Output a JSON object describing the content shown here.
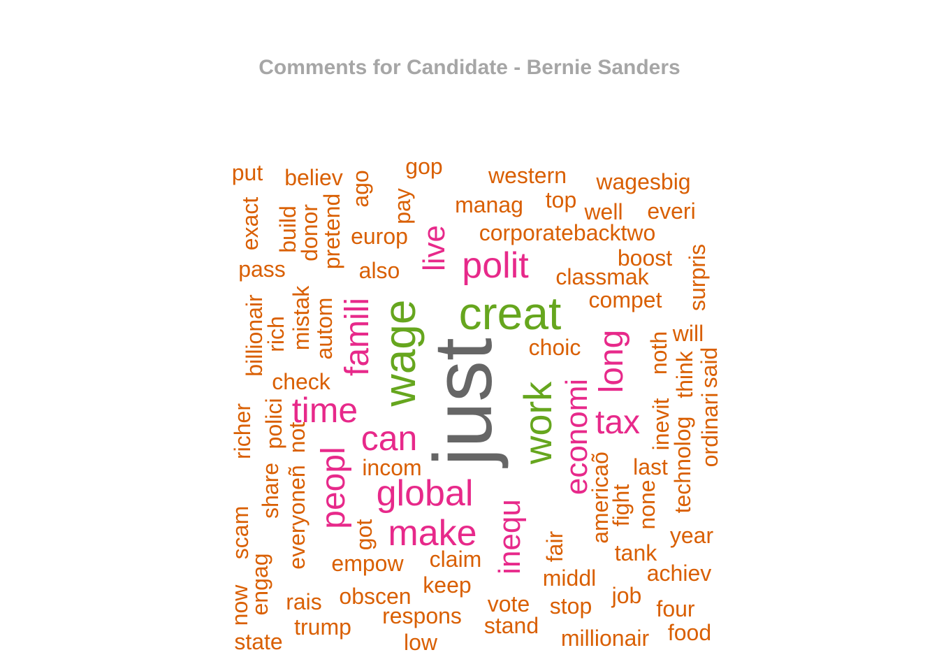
{
  "title": "Comments for Candidate - Bernie Sanders",
  "colors": {
    "orange": "#d95f02",
    "pink": "#e7298a",
    "green": "#66a61e",
    "gray": "#666666"
  },
  "words": [
    {
      "text": "just",
      "color": "gray"
    },
    {
      "text": "creat",
      "color": "green"
    },
    {
      "text": "wage",
      "color": "green"
    },
    {
      "text": "work",
      "color": "green"
    },
    {
      "text": "polit",
      "color": "pink"
    },
    {
      "text": "live",
      "color": "pink"
    },
    {
      "text": "famili",
      "color": "pink"
    },
    {
      "text": "time",
      "color": "pink"
    },
    {
      "text": "can",
      "color": "pink"
    },
    {
      "text": "peopl",
      "color": "pink"
    },
    {
      "text": "global",
      "color": "pink"
    },
    {
      "text": "make",
      "color": "pink"
    },
    {
      "text": "inequ",
      "color": "pink"
    },
    {
      "text": "economi",
      "color": "pink"
    },
    {
      "text": "long",
      "color": "pink"
    },
    {
      "text": "tax",
      "color": "pink"
    },
    {
      "text": "put",
      "color": "orange"
    },
    {
      "text": "believ",
      "color": "orange"
    },
    {
      "text": "ago",
      "color": "orange"
    },
    {
      "text": "gop",
      "color": "orange"
    },
    {
      "text": "western",
      "color": "orange"
    },
    {
      "text": "wagesbig",
      "color": "orange"
    },
    {
      "text": "pay",
      "color": "orange"
    },
    {
      "text": "manag",
      "color": "orange"
    },
    {
      "text": "top",
      "color": "orange"
    },
    {
      "text": "well",
      "color": "orange"
    },
    {
      "text": "everi",
      "color": "orange"
    },
    {
      "text": "exact",
      "color": "orange"
    },
    {
      "text": "build",
      "color": "orange"
    },
    {
      "text": "donor",
      "color": "orange"
    },
    {
      "text": "pretend",
      "color": "orange"
    },
    {
      "text": "europ",
      "color": "orange"
    },
    {
      "text": "corporatebacktwo",
      "color": "orange"
    },
    {
      "text": "pass",
      "color": "orange"
    },
    {
      "text": "also",
      "color": "orange"
    },
    {
      "text": "boost",
      "color": "orange"
    },
    {
      "text": "surpris",
      "color": "orange"
    },
    {
      "text": "classmak",
      "color": "orange"
    },
    {
      "text": "mistak",
      "color": "orange"
    },
    {
      "text": "compet",
      "color": "orange"
    },
    {
      "text": "billionair",
      "color": "orange"
    },
    {
      "text": "rich",
      "color": "orange"
    },
    {
      "text": "autom",
      "color": "orange"
    },
    {
      "text": "choic",
      "color": "orange"
    },
    {
      "text": "will",
      "color": "orange"
    },
    {
      "text": "noth",
      "color": "orange"
    },
    {
      "text": "check",
      "color": "orange"
    },
    {
      "text": "think",
      "color": "orange"
    },
    {
      "text": "said",
      "color": "orange"
    },
    {
      "text": "richer",
      "color": "orange"
    },
    {
      "text": "polici",
      "color": "orange"
    },
    {
      "text": "inevit",
      "color": "orange"
    },
    {
      "text": "ordinari",
      "color": "orange"
    },
    {
      "text": "not",
      "color": "orange"
    },
    {
      "text": "share",
      "color": "orange"
    },
    {
      "text": "everyoneñ",
      "color": "orange"
    },
    {
      "text": "incom",
      "color": "orange"
    },
    {
      "text": "americaõ",
      "color": "orange"
    },
    {
      "text": "last",
      "color": "orange"
    },
    {
      "text": "technolog",
      "color": "orange"
    },
    {
      "text": "none",
      "color": "orange"
    },
    {
      "text": "fight",
      "color": "orange"
    },
    {
      "text": "scam",
      "color": "orange"
    },
    {
      "text": "got",
      "color": "orange"
    },
    {
      "text": "year",
      "color": "orange"
    },
    {
      "text": "fair",
      "color": "orange"
    },
    {
      "text": "tank",
      "color": "orange"
    },
    {
      "text": "claim",
      "color": "orange"
    },
    {
      "text": "empow",
      "color": "orange"
    },
    {
      "text": "achiev",
      "color": "orange"
    },
    {
      "text": "middl",
      "color": "orange"
    },
    {
      "text": "engag",
      "color": "orange"
    },
    {
      "text": "keep",
      "color": "orange"
    },
    {
      "text": "job",
      "color": "orange"
    },
    {
      "text": "now",
      "color": "orange"
    },
    {
      "text": "obscen",
      "color": "orange"
    },
    {
      "text": "rais",
      "color": "orange"
    },
    {
      "text": "vote",
      "color": "orange"
    },
    {
      "text": "stop",
      "color": "orange"
    },
    {
      "text": "four",
      "color": "orange"
    },
    {
      "text": "respons",
      "color": "orange"
    },
    {
      "text": "trump",
      "color": "orange"
    },
    {
      "text": "stand",
      "color": "orange"
    },
    {
      "text": "food",
      "color": "orange"
    },
    {
      "text": "millionair",
      "color": "orange"
    },
    {
      "text": "state",
      "color": "orange"
    },
    {
      "text": "low",
      "color": "orange"
    }
  ]
}
